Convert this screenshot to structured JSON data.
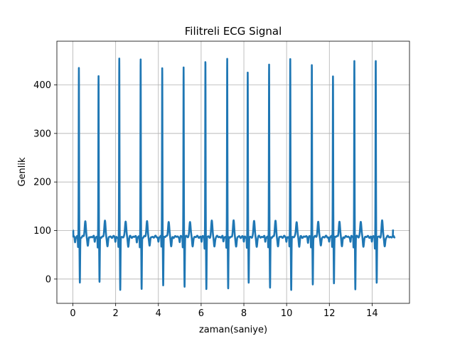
{
  "chart_data": {
    "type": "line",
    "title": "Filitreli ECG Signal",
    "xlabel": "zaman(saniye)",
    "ylabel": "Genlik",
    "xlim": [
      -0.75,
      15.75
    ],
    "ylim": [
      -50,
      490
    ],
    "xticks": [
      0,
      2,
      4,
      6,
      8,
      10,
      12,
      14
    ],
    "yticks": [
      0,
      100,
      200,
      300,
      400
    ],
    "grid": true,
    "baseline": 87,
    "series": [
      {
        "color": "#1f77b4",
        "beats": [
          {
            "t": 0.28,
            "r": 435,
            "s": -8
          },
          {
            "t": 1.2,
            "r": 418,
            "s": -8
          },
          {
            "t": 2.17,
            "r": 452,
            "s": -22
          },
          {
            "t": 3.17,
            "r": 454,
            "s": -22
          },
          {
            "t": 4.18,
            "r": 438,
            "s": -12
          },
          {
            "t": 5.18,
            "r": 436,
            "s": -14
          },
          {
            "t": 6.2,
            "r": 452,
            "s": -22
          },
          {
            "t": 7.22,
            "r": 454,
            "s": -22
          },
          {
            "t": 8.18,
            "r": 424,
            "s": -8
          },
          {
            "t": 9.18,
            "r": 442,
            "s": -20
          },
          {
            "t": 10.17,
            "r": 454,
            "s": -22
          },
          {
            "t": 11.18,
            "r": 442,
            "s": -10
          },
          {
            "t": 12.17,
            "r": 420,
            "s": -8
          },
          {
            "t": 13.17,
            "r": 450,
            "s": -20
          },
          {
            "t": 14.17,
            "r": 455,
            "s": -10
          }
        ]
      }
    ]
  }
}
